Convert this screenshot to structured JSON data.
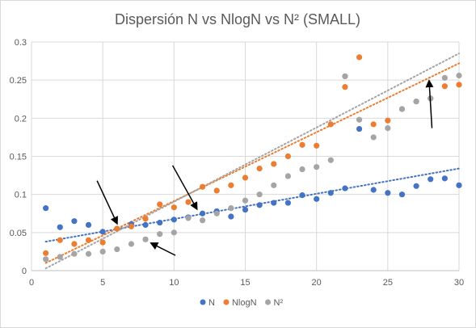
{
  "chart_data": {
    "type": "scatter",
    "title": "Dispersión N vs NlogN vs N² (SMALL)",
    "xlim": [
      0,
      30
    ],
    "ylim": [
      0,
      0.3
    ],
    "x_ticks": [
      0,
      5,
      10,
      15,
      20,
      25,
      30
    ],
    "y_ticks": [
      0,
      0.05,
      0.1,
      0.15,
      0.2,
      0.25,
      0.3
    ],
    "x_tick_labels": [
      "0",
      "5",
      "10",
      "15",
      "20",
      "25",
      "30"
    ],
    "y_tick_labels": [
      "0",
      "0.05",
      "0.1",
      "0.15",
      "0.2",
      "0.25",
      "0.3"
    ],
    "grid": true,
    "legend_position": "bottom",
    "series": [
      {
        "name": "N",
        "color": "#4472c4",
        "x": [
          1,
          2,
          3,
          4,
          5,
          6,
          7,
          8,
          9,
          10,
          11,
          12,
          13,
          14,
          15,
          16,
          17,
          18,
          19,
          20,
          21,
          22,
          23,
          24,
          25,
          26,
          27,
          28,
          29,
          30
        ],
        "y": [
          0.082,
          0.057,
          0.065,
          0.06,
          0.051,
          0.055,
          0.061,
          0.06,
          0.063,
          0.067,
          0.07,
          0.075,
          0.078,
          0.071,
          0.08,
          0.086,
          0.089,
          0.089,
          0.099,
          0.094,
          0.102,
          0.108,
          0.186,
          0.106,
          0.102,
          0.1,
          0.111,
          0.12,
          0.121,
          0.112
        ],
        "trend": {
          "x": [
            1,
            30
          ],
          "y": [
            0.038,
            0.134
          ]
        }
      },
      {
        "name": "NlogN",
        "color": "#ed7d31",
        "x": [
          1,
          2,
          3,
          4,
          5,
          6,
          7,
          8,
          9,
          10,
          11,
          12,
          13,
          14,
          15,
          16,
          17,
          18,
          19,
          20,
          21,
          22,
          22,
          23,
          24,
          25,
          26,
          27,
          28,
          29,
          30
        ],
        "y": [
          0.023,
          0.04,
          0.035,
          0.04,
          0.037,
          0.055,
          0.058,
          0.068,
          0.087,
          0.083,
          0.09,
          0.11,
          0.105,
          0.112,
          0.122,
          0.134,
          0.14,
          0.15,
          0.165,
          0.164,
          0.192,
          0.241,
          0.255,
          0.28,
          0.192,
          0.197,
          0.212,
          0.222,
          0.226,
          0.242,
          0.244
        ],
        "trend": {
          "x": [
            1,
            30
          ],
          "y": [
            0.01,
            0.272
          ]
        }
      },
      {
        "name": "N²",
        "color": "#a5a5a5",
        "x": [
          1,
          2,
          3,
          4,
          5,
          6,
          7,
          8,
          9,
          10,
          11,
          12,
          13,
          14,
          15,
          16,
          17,
          18,
          19,
          20,
          21,
          22,
          23,
          24,
          25,
          26,
          27,
          28,
          29,
          30
        ],
        "y": [
          0.015,
          0.018,
          0.022,
          0.022,
          0.025,
          0.028,
          0.035,
          0.041,
          0.048,
          0.05,
          0.069,
          0.066,
          0.075,
          0.082,
          0.092,
          0.1,
          0.112,
          0.124,
          0.133,
          0.136,
          0.145,
          0.255,
          0.198,
          0.175,
          0.187,
          0.212,
          0.222,
          0.226,
          0.253,
          0.256
        ],
        "trend": {
          "x": [
            1,
            30
          ],
          "y": [
            0.003,
            0.285
          ]
        }
      }
    ],
    "annotations": [
      {
        "type": "arrow",
        "from": [
          4.6,
          0.118
        ],
        "to": [
          6.0,
          0.062
        ]
      },
      {
        "type": "arrow",
        "from": [
          9.9,
          0.138
        ],
        "to": [
          11.6,
          0.081
        ]
      },
      {
        "type": "arrow",
        "from": [
          10.1,
          0.02
        ],
        "to": [
          8.4,
          0.036
        ]
      },
      {
        "type": "arrow",
        "from": [
          28.1,
          0.187
        ],
        "to": [
          27.9,
          0.249
        ]
      }
    ]
  }
}
